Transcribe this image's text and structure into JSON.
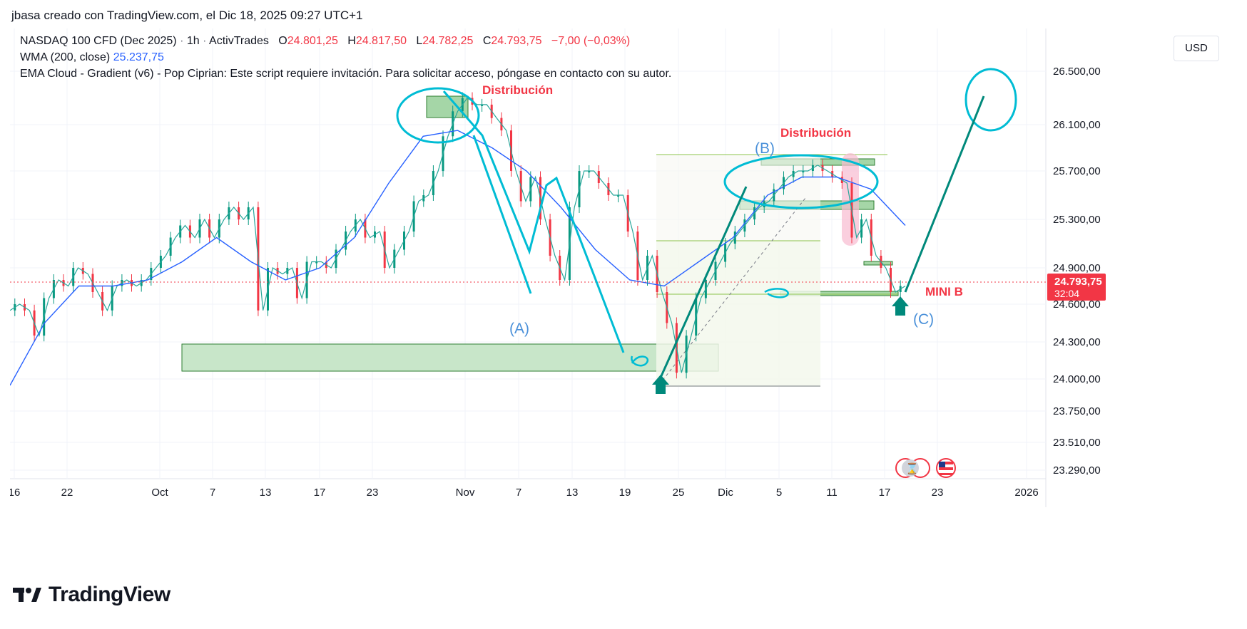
{
  "header": {
    "title": "jbasa creado con TradingView.com, el Dic 18, 2025 09:27 UTC+1"
  },
  "legend": {
    "symbol": "NASDAQ 100 CFD (Dec 2025)",
    "interval": "1h",
    "broker": "ActivTrades",
    "o_label": "O",
    "o": "24.801,25",
    "h_label": "H",
    "h": "24.817,50",
    "l_label": "L",
    "l": "24.782,25",
    "c_label": "C",
    "c": "24.793,75",
    "change": "−7,00 (−0,03%)",
    "wma_label": "WMA (200, close)",
    "wma_value": "25.237,75",
    "ema_text": "EMA Cloud - Gradient (v6) - Pop Ciprian: Este script requiere invitación. Para solicitar acceso, póngase en contacto con su autor."
  },
  "currency_button": "USD",
  "price_tag": {
    "value": "24.793,75",
    "countdown": "32:04",
    "color": "#f23645"
  },
  "footer": {
    "brand": "TradingView"
  },
  "colors": {
    "up": "#089981",
    "down": "#f23645",
    "wma": "#2962ff",
    "annotation_cyan": "#00bcd4",
    "annotation_teal": "#00897b",
    "zone_green": "#a5d6a7"
  },
  "chart_data": {
    "type": "line",
    "title": "",
    "ylim": [
      23150,
      26800
    ],
    "y_ticks": [
      "26.500,00",
      "26.100,00",
      "25.700,00",
      "25.300,00",
      "24.900,00",
      "24.600,00",
      "24.300,00",
      "24.000,00",
      "23.750,00",
      "23.510,00",
      "23.290,00"
    ],
    "x_ticks": [
      "16",
      "22",
      "Oct",
      "7",
      "13",
      "17",
      "23",
      "Nov",
      "7",
      "13",
      "19",
      "25",
      "Dic",
      "5",
      "11",
      "17",
      "23",
      "2026"
    ],
    "series": [
      {
        "values": [
          24550,
          24600,
          24550,
          24350,
          24650,
          24800,
          24750,
          24900,
          24850,
          24700,
          24550,
          24750,
          24800,
          24750,
          24800,
          24900,
          25000,
          25150,
          25250,
          25150,
          25300,
          25150,
          25300,
          25400,
          25300,
          25400,
          24550,
          24900,
          24850,
          24900,
          24650,
          24950,
          24950,
          24900,
          25050,
          25200,
          25300,
          25150,
          25200,
          24900,
          25050,
          25200,
          25450,
          25500,
          25700,
          26000,
          26200,
          26300,
          26250,
          26250,
          26150,
          26050,
          25700,
          25450,
          25650,
          25300,
          25000,
          24800,
          25400,
          25700,
          25700,
          25600,
          25500,
          25500,
          25200,
          24800,
          25000,
          24700,
          24450,
          24050,
          24350,
          24650,
          24800,
          24950,
          25100,
          25200,
          25300,
          25400,
          25450,
          25550,
          25650,
          25700,
          25700,
          25750,
          25700,
          25650,
          25600,
          25150,
          25300,
          25000,
          24900,
          24700,
          24750
        ]
      },
      {
        "name": "WMA (200, close)",
        "values": [
          23950,
          24450,
          24750,
          24750,
          24800,
          24950,
          25150,
          24950,
          24800,
          24900,
          25150,
          25600,
          26000,
          26050,
          25900,
          25700,
          25400,
          25050,
          24800,
          24750,
          24950,
          25150,
          25500,
          25650,
          25650,
          25550,
          25250
        ]
      }
    ],
    "annotations": [
      "Distribución",
      "Distribución",
      "(A)",
      "(B)",
      "(C)",
      "MINI B"
    ]
  }
}
